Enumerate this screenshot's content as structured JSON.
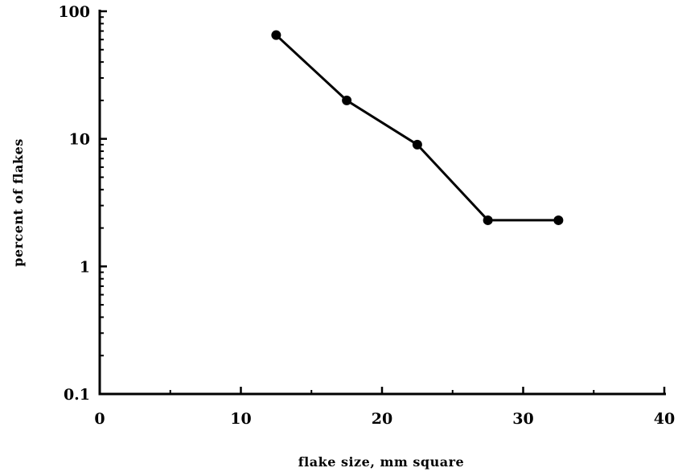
{
  "chart_data": {
    "type": "line",
    "title": "",
    "xlabel": "flake size, mm square",
    "ylabel": "percent of flakes",
    "xlim": [
      0,
      40
    ],
    "ylim": [
      0.1,
      100
    ],
    "y_scale": "log",
    "grid": false,
    "x_ticks": [
      0,
      10,
      20,
      30,
      40
    ],
    "x_tick_labels": [
      "0",
      "10",
      "20",
      "30",
      "40"
    ],
    "y_ticks": [
      0.1,
      1,
      10,
      100
    ],
    "y_tick_labels": [
      "0.1",
      "1",
      "10",
      "100"
    ],
    "colors": {
      "line": "#000000",
      "marker": "#000000"
    },
    "series": [
      {
        "x": [
          12.5,
          17.5,
          22.5,
          27.5,
          32.5
        ],
        "y": [
          65,
          20,
          9,
          2.3,
          2.3
        ]
      }
    ]
  }
}
